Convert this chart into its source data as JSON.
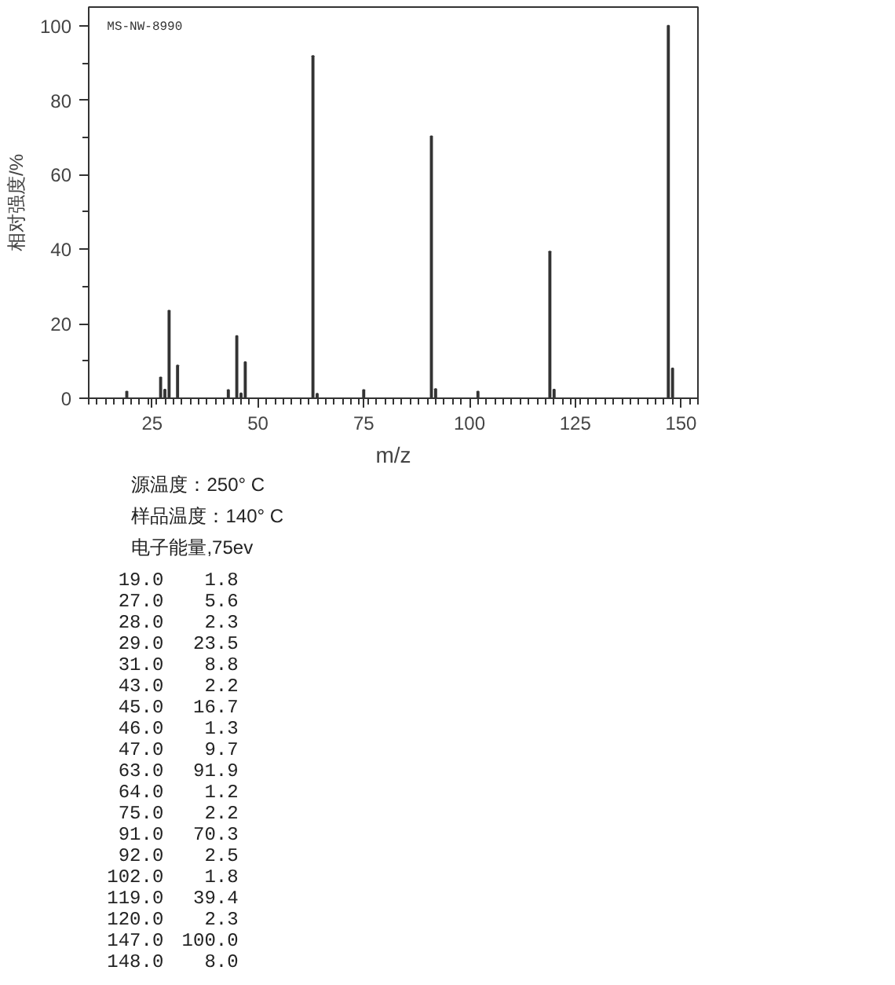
{
  "chart_data": {
    "type": "bar",
    "xlabel": "m/z",
    "ylabel": "相对强度/%",
    "x": [
      19,
      27,
      28,
      29,
      31,
      43,
      45,
      46,
      47,
      63,
      64,
      75,
      91,
      92,
      102,
      119,
      120,
      147,
      148
    ],
    "values": [
      1.8,
      5.6,
      2.3,
      23.5,
      8.8,
      2.2,
      16.7,
      1.3,
      9.7,
      91.9,
      1.2,
      2.2,
      70.3,
      2.5,
      1.8,
      39.4,
      2.3,
      100.0,
      8.0
    ],
    "color": "#333333",
    "xlim": [
      10,
      154
    ],
    "ylim": [
      0,
      105
    ],
    "xticks": [
      25,
      50,
      75,
      100,
      125,
      150
    ],
    "yticks": [
      0,
      20,
      40,
      60,
      80,
      100
    ],
    "grid": false,
    "annotations": [
      "MS-NW-8990",
      "源温度：250° C",
      "样品温度：140° C",
      "电子能量,75ev",
      "19.0",
      "1.8",
      "27.0",
      "5.6",
      "28.0",
      "2.3",
      "29.0",
      "23.5",
      "31.0",
      "8.8",
      "43.0",
      "2.2",
      "45.0",
      "16.7",
      "46.0",
      "1.3",
      "47.0",
      "9.7",
      "63.0",
      "91.9",
      "64.0",
      "1.2",
      "75.0",
      "2.2",
      "91.0",
      "70.3",
      "92.0",
      "2.5",
      "102.0",
      "1.8",
      "119.0",
      "39.4",
      "120.0",
      "2.3",
      "147.0",
      "100.0",
      "148.0",
      "8.0"
    ]
  }
}
